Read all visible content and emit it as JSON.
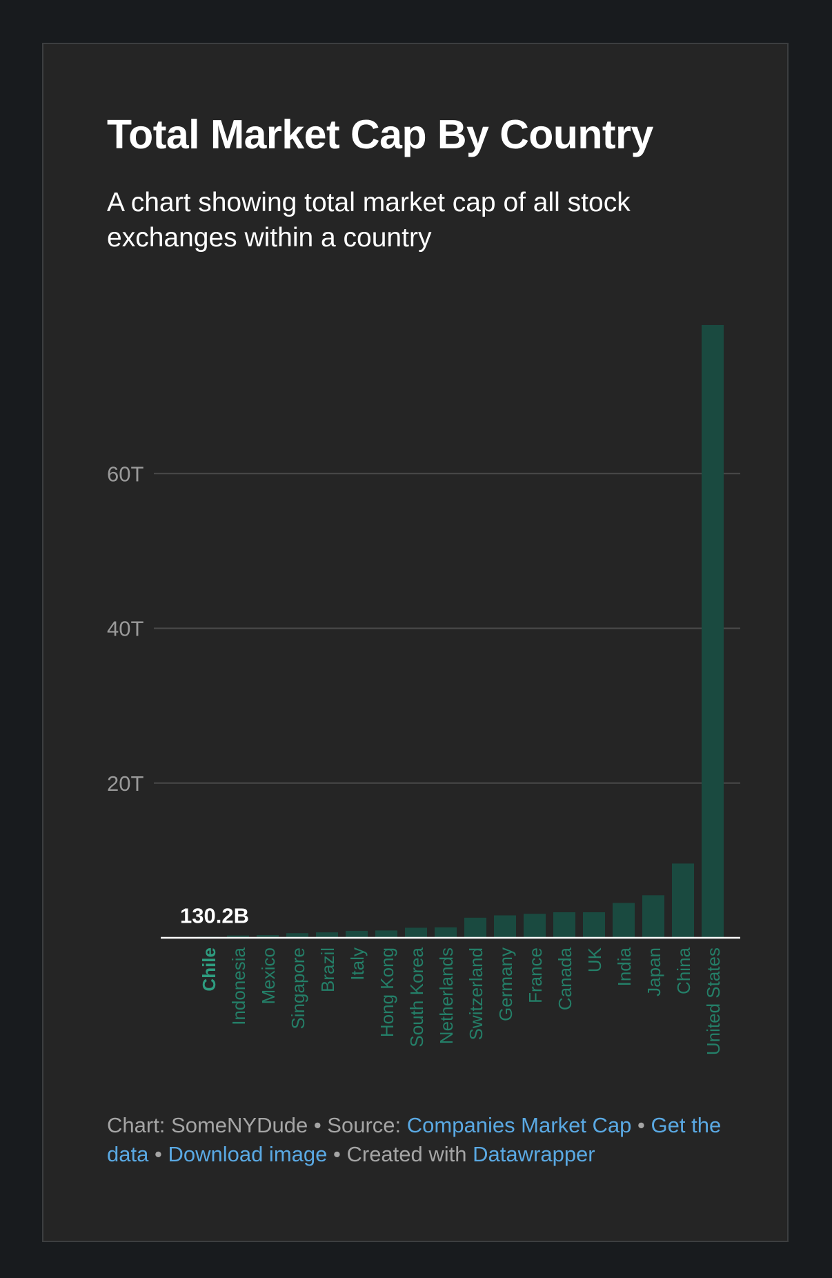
{
  "chart_data": {
    "type": "bar",
    "title": "Total Market Cap By Country",
    "subtitle": "A chart showing total market cap of all stock exchanges within a country",
    "xlabel": "",
    "ylabel": "",
    "ylim": [
      0,
      80
    ],
    "y_unit": "T",
    "y_ticks": [
      {
        "value": 20,
        "label": "20T"
      },
      {
        "value": 40,
        "label": "40T"
      },
      {
        "value": 60,
        "label": "60T"
      }
    ],
    "categories": [
      "Chile",
      "Indonesia",
      "Mexico",
      "Singapore",
      "Brazil",
      "Italy",
      "Hong Kong",
      "South Korea",
      "Netherlands",
      "Switzerland",
      "Germany",
      "France",
      "Canada",
      "UK",
      "India",
      "Japan",
      "China",
      "United States"
    ],
    "values": [
      0.1302,
      0.3,
      0.35,
      0.6,
      0.7,
      0.9,
      0.95,
      1.3,
      1.35,
      2.6,
      2.9,
      3.1,
      3.3,
      3.3,
      4.5,
      5.5,
      9.6,
      79.2
    ],
    "highlight": {
      "index": 0,
      "label": "130.2B"
    },
    "colors": {
      "bar": "#1a4a40",
      "label": "#247f68",
      "highlight_label": "#2e9d80",
      "grid": "#4a4a4a",
      "tick": "#9a9a9a",
      "baseline": "#ffffff"
    },
    "grid": true
  },
  "footer": {
    "chart_prefix": "Chart: SomeNYDude",
    "sep": "•",
    "source_prefix": "Source:",
    "source_link": "Companies Market Cap",
    "get_data": "Get the data",
    "download": "Download image",
    "created_prefix": "Created with",
    "created_link": "Datawrapper"
  }
}
